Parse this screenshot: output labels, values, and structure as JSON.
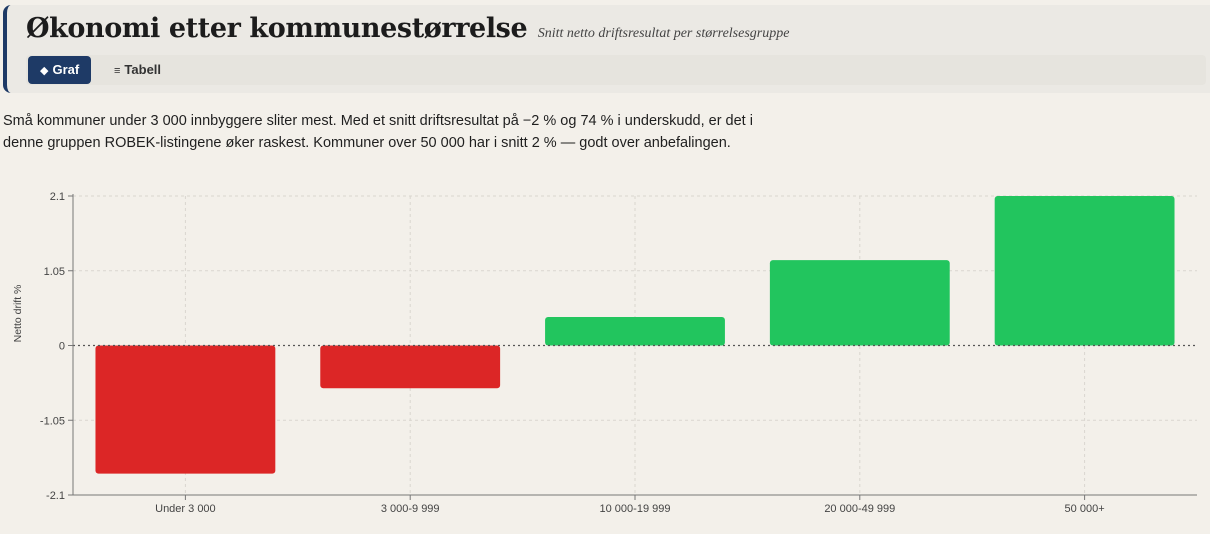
{
  "header": {
    "title": "Økonomi etter kommunestørrelse",
    "subtitle": "Snitt netto driftsresultat per størrelsesgruppe",
    "tabs": [
      {
        "label": "Graf",
        "icon": "◆",
        "icon_name": "diamond-icon",
        "active": true
      },
      {
        "label": "Tabell",
        "icon": "≡",
        "icon_name": "list-icon",
        "active": false
      }
    ]
  },
  "description": "Små kommuner under 3 000 innbyggere sliter mest. Med et snitt driftsresultat på −2 % og 74 % i underskudd, er det i denne gruppen ROBEK-listingene øker raskest. Kommuner over 50 000 har i snitt 2 % — godt over anbefalingen.",
  "colors": {
    "positive": "#22c55e",
    "negative": "#dc2626",
    "accent": "#1e3a66",
    "background": "#f3f0ea"
  },
  "chart_data": {
    "type": "bar",
    "categories": [
      "Under 3 000",
      "3 000-9 999",
      "10 000-19 999",
      "20 000-49 999",
      "50 000+"
    ],
    "values": [
      -1.8,
      -0.6,
      0.4,
      1.2,
      2.1
    ],
    "ylabel": "Netto drift %",
    "xlabel": "",
    "ylim": [
      -2.1,
      2.1
    ],
    "yticks": [
      2.1,
      1.05,
      0,
      -1.05,
      -2.1
    ],
    "ytick_labels": [
      "2.1",
      "1.05",
      "0",
      "-1.05",
      "-2.1"
    ],
    "grid": true,
    "zero_line": "dotted"
  }
}
